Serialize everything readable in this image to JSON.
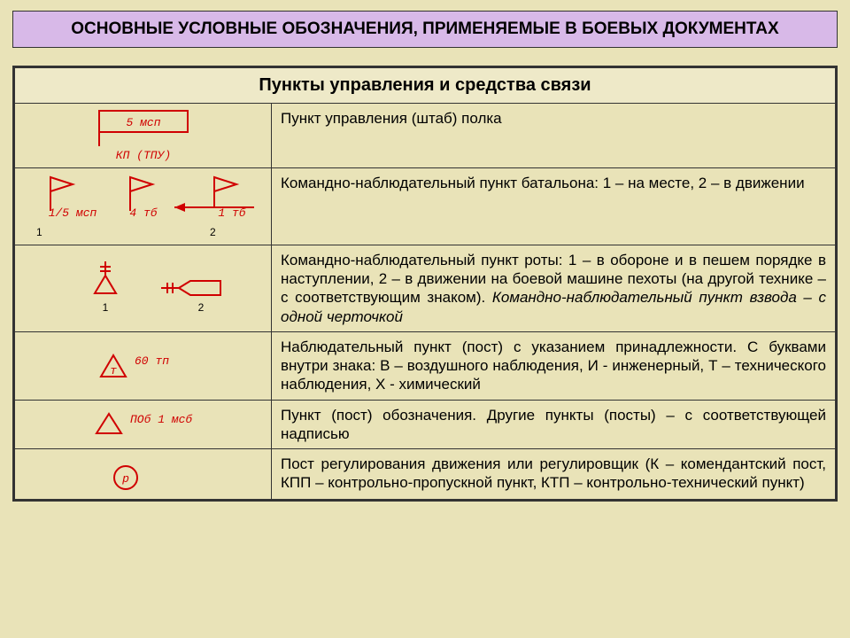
{
  "title": "ОСНОВНЫЕ УСЛОВНЫЕ ОБОЗНАЧЕНИЯ, ПРИМЕНЯЕМЫЕ В БОЕВЫХ ДОКУМЕНТАХ",
  "table_title": "Пункты управления и средства связи",
  "colors": {
    "red": "#d00000",
    "bg": "#e9e3b8",
    "title_bg": "#d8b9e8",
    "border": "#333333"
  },
  "rows": [
    {
      "desc": "Пункт управления (штаб) полка",
      "symbol_labels": {
        "inside": "5 мсп",
        "below": "КП (ТПУ)"
      }
    },
    {
      "desc": "Командно-наблюдательный пункт батальона: 1 – на месте, 2 – в движении",
      "symbol_labels": {
        "l1": "1/5 мсп",
        "l2": "4 тб",
        "l3": "1 тб",
        "n1": "1",
        "n2": "2"
      }
    },
    {
      "desc_html": "Командно-наблюдательный пункт роты: 1 – в обороне и в пешем порядке в наступлении, 2 – в движении на боевой машине пехоты (на другой технике – с соответствующим знаком). <em>Командно-наблюдательный пункт взвода – с одной черточкой</em>",
      "symbol_labels": {
        "n1": "1",
        "n2": "2"
      }
    },
    {
      "desc": "Наблюдательный пункт (пост) с указанием принадлежности. С буквами внутри знака: В – воздушного наблюдения, И - инженерный, Т – технического наблюдения, Х - химический",
      "symbol_labels": {
        "letter": "т",
        "right": "60 тп"
      }
    },
    {
      "desc": "Пункт (пост) обозначения. Другие пункты (посты) – с соответствующей надписью",
      "symbol_labels": {
        "right": "ПОб 1 мсб"
      }
    },
    {
      "desc": "Пост регулирования движения или регулировщик (К – комендантский пост, КПП – контрольно-пропускной пункт, КТП – контрольно-технический пункт)",
      "symbol_labels": {
        "letter": "р"
      }
    }
  ]
}
